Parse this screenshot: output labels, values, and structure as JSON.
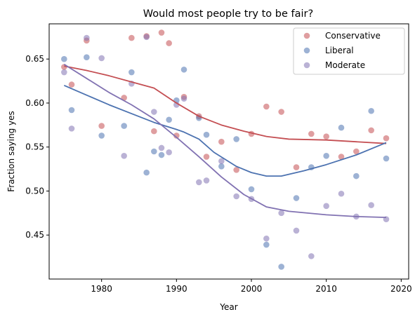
{
  "chart_data": {
    "type": "scatter",
    "title": "Would most people try to be fair?",
    "xlabel": "Year",
    "ylabel": "Fraction saying yes",
    "xlim": [
      1973,
      2021
    ],
    "ylim": [
      0.4,
      0.69
    ],
    "xticks": [
      1980,
      1990,
      2000,
      2010,
      2020
    ],
    "yticks": [
      0.45,
      0.5,
      0.55,
      0.6,
      0.65
    ],
    "grid": false,
    "legend_position": "top-right",
    "series": [
      {
        "name": "Conservative",
        "color": "#c44e52",
        "points": [
          [
            1975,
            0.641
          ],
          [
            1976,
            0.621
          ],
          [
            1978,
            0.671
          ],
          [
            1980,
            0.574
          ],
          [
            1983,
            0.606
          ],
          [
            1984,
            0.674
          ],
          [
            1986,
            0.676
          ],
          [
            1987,
            0.568
          ],
          [
            1988,
            0.68
          ],
          [
            1989,
            0.668
          ],
          [
            1990,
            0.563
          ],
          [
            1991,
            0.607
          ],
          [
            1993,
            0.585
          ],
          [
            1994,
            0.539
          ],
          [
            1996,
            0.556
          ],
          [
            1998,
            0.524
          ],
          [
            2000,
            0.565
          ],
          [
            2002,
            0.596
          ],
          [
            2004,
            0.59
          ],
          [
            2006,
            0.527
          ],
          [
            2008,
            0.565
          ],
          [
            2010,
            0.562
          ],
          [
            2012,
            0.539
          ],
          [
            2014,
            0.545
          ],
          [
            2016,
            0.569
          ],
          [
            2018,
            0.56
          ]
        ],
        "trend": [
          [
            1975,
            0.642
          ],
          [
            1978,
            0.637
          ],
          [
            1981,
            0.631
          ],
          [
            1984,
            0.624
          ],
          [
            1987,
            0.617
          ],
          [
            1990,
            0.6
          ],
          [
            1993,
            0.585
          ],
          [
            1996,
            0.575
          ],
          [
            1999,
            0.568
          ],
          [
            2002,
            0.562
          ],
          [
            2005,
            0.559
          ],
          [
            2010,
            0.558
          ],
          [
            2014,
            0.556
          ],
          [
            2018,
            0.554
          ]
        ]
      },
      {
        "name": "Liberal",
        "color": "#4c72b0",
        "points": [
          [
            1975,
            0.65
          ],
          [
            1976,
            0.592
          ],
          [
            1978,
            0.652
          ],
          [
            1980,
            0.563
          ],
          [
            1983,
            0.574
          ],
          [
            1984,
            0.635
          ],
          [
            1986,
            0.521
          ],
          [
            1987,
            0.545
          ],
          [
            1988,
            0.541
          ],
          [
            1989,
            0.581
          ],
          [
            1990,
            0.603
          ],
          [
            1991,
            0.638
          ],
          [
            1993,
            0.583
          ],
          [
            1994,
            0.564
          ],
          [
            1996,
            0.528
          ],
          [
            1998,
            0.559
          ],
          [
            2000,
            0.502
          ],
          [
            2002,
            0.439
          ],
          [
            2004,
            0.414
          ],
          [
            2006,
            0.492
          ],
          [
            2008,
            0.527
          ],
          [
            2010,
            0.54
          ],
          [
            2012,
            0.572
          ],
          [
            2014,
            0.517
          ],
          [
            2016,
            0.591
          ],
          [
            2018,
            0.537
          ]
        ],
        "trend": [
          [
            1975,
            0.62
          ],
          [
            1978,
            0.609
          ],
          [
            1981,
            0.598
          ],
          [
            1984,
            0.588
          ],
          [
            1987,
            0.578
          ],
          [
            1990,
            0.57
          ],
          [
            1991,
            0.567
          ],
          [
            1993,
            0.559
          ],
          [
            1995,
            0.544
          ],
          [
            1998,
            0.528
          ],
          [
            2000,
            0.521
          ],
          [
            2002,
            0.517
          ],
          [
            2004,
            0.517
          ],
          [
            2007,
            0.523
          ],
          [
            2010,
            0.53
          ],
          [
            2014,
            0.541
          ],
          [
            2018,
            0.555
          ]
        ]
      },
      {
        "name": "Moderate",
        "color": "#8172b2",
        "points": [
          [
            1975,
            0.635
          ],
          [
            1976,
            0.571
          ],
          [
            1978,
            0.674
          ],
          [
            1980,
            0.651
          ],
          [
            1983,
            0.54
          ],
          [
            1984,
            0.622
          ],
          [
            1986,
            0.675
          ],
          [
            1987,
            0.59
          ],
          [
            1988,
            0.549
          ],
          [
            1989,
            0.544
          ],
          [
            1990,
            0.598
          ],
          [
            1991,
            0.605
          ],
          [
            1993,
            0.51
          ],
          [
            1994,
            0.512
          ],
          [
            1996,
            0.534
          ],
          [
            1998,
            0.494
          ],
          [
            2000,
            0.491
          ],
          [
            2002,
            0.446
          ],
          [
            2004,
            0.475
          ],
          [
            2006,
            0.455
          ],
          [
            2008,
            0.426
          ],
          [
            2010,
            0.483
          ],
          [
            2012,
            0.497
          ],
          [
            2014,
            0.471
          ],
          [
            2016,
            0.484
          ],
          [
            2018,
            0.468
          ]
        ],
        "trend": [
          [
            1975,
            0.644
          ],
          [
            1978,
            0.628
          ],
          [
            1981,
            0.612
          ],
          [
            1984,
            0.598
          ],
          [
            1987,
            0.582
          ],
          [
            1990,
            0.561
          ],
          [
            1993,
            0.539
          ],
          [
            1996,
            0.516
          ],
          [
            1999,
            0.496
          ],
          [
            2002,
            0.482
          ],
          [
            2005,
            0.477
          ],
          [
            2010,
            0.473
          ],
          [
            2014,
            0.471
          ],
          [
            2018,
            0.47
          ]
        ]
      }
    ]
  }
}
